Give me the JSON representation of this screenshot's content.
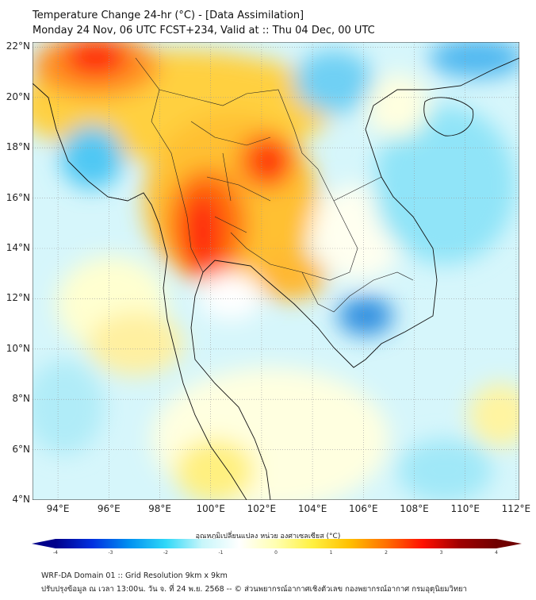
{
  "title": {
    "line1": "Temperature Change 24-hr (°C) - [Data Assimilation]",
    "line2": "Monday 24 Nov, 06 UTC FCST+234, Valid at :: Thu 04 Dec, 00 UTC"
  },
  "axes": {
    "lat_labels": [
      "22°N",
      "20°N",
      "18°N",
      "16°N",
      "14°N",
      "12°N",
      "10°N",
      "8°N",
      "6°N",
      "4°N"
    ],
    "lat_values": [
      22,
      20,
      18,
      16,
      14,
      12,
      10,
      8,
      6,
      4
    ],
    "lon_labels": [
      "94°E",
      "96°E",
      "98°E",
      "100°E",
      "102°E",
      "104°E",
      "106°E",
      "108°E",
      "110°E",
      "112°E"
    ],
    "lon_values": [
      94,
      96,
      98,
      100,
      102,
      104,
      106,
      108,
      110,
      112
    ]
  },
  "colorbar": {
    "label": "อุณหภูมิเปลี่ยนแปลง หน่วย องศาเซลเซียส (°C)",
    "ticks": [
      "-4",
      "-3",
      "-2",
      "-1",
      "0",
      "1",
      "2",
      "3",
      "4"
    ],
    "min": -4,
    "max": 4,
    "colors": [
      "#00008b",
      "#0030e0",
      "#0090f0",
      "#30d8f8",
      "#c8f6fa",
      "#ffffff",
      "#ffffb0",
      "#fff040",
      "#ffc000",
      "#ff7000",
      "#ff1000",
      "#a00000",
      "#700000"
    ]
  },
  "footer": {
    "line1": "WRF-DA Domain 01 :: Grid Resolution 9km x 9km",
    "line2": "ปรับปรุงข้อมูล ณ เวลา 13:00น. วัน จ. ที่ 24 พ.ย. 2568 -- © ส่วนพยากรณ์อากาศเชิงตัวเลข กองพยากรณ์อากาศ กรมอุตุนิยมวิทยา"
  }
}
